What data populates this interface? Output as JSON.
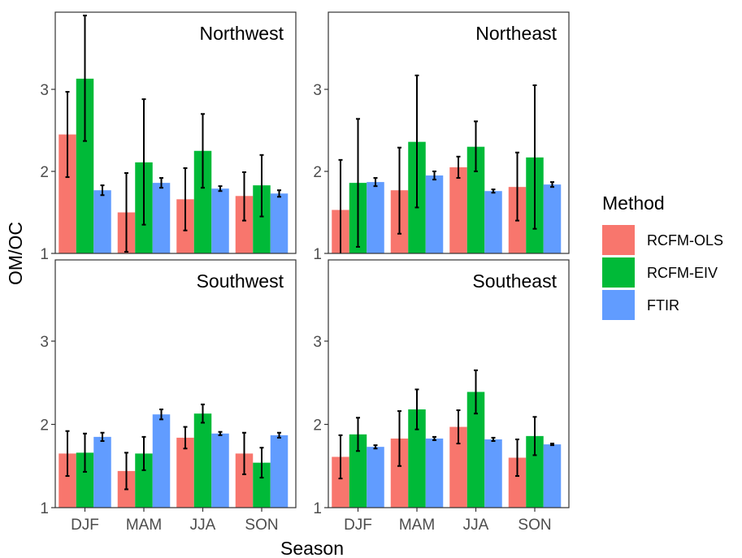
{
  "colors": {
    "RCFM-OLS": "#F8766D",
    "RCFM-EIV": "#00BA38",
    "FTIR": "#619CFF",
    "error_bar": "#000000",
    "panel_border": "#333333"
  },
  "chart_data": {
    "type": "bar",
    "facets": [
      "Northwest",
      "Northeast",
      "Southwest",
      "Southeast"
    ],
    "categories": [
      "DJF",
      "MAM",
      "JJA",
      "SON"
    ],
    "series_names": [
      "RCFM-OLS",
      "RCFM-EIV",
      "FTIR"
    ],
    "xlabel": "Season",
    "ylabel": "OM/OC",
    "ylim": [
      1,
      4
    ],
    "yticks": [
      "1",
      "2",
      "3"
    ],
    "grid": false,
    "legend": {
      "title": "Method",
      "position": "right",
      "entries": [
        "RCFM-OLS",
        "RCFM-EIV",
        "FTIR"
      ]
    },
    "panels": [
      {
        "facet": "Northwest",
        "series": [
          {
            "name": "RCFM-OLS",
            "values": [
              2.45,
              1.5,
              1.66,
              1.7
            ],
            "lower": [
              1.93,
              1.02,
              1.28,
              1.4
            ],
            "upper": [
              2.97,
              1.98,
              2.04,
              1.99
            ]
          },
          {
            "name": "RCFM-EIV",
            "values": [
              3.13,
              2.11,
              2.25,
              1.83
            ],
            "lower": [
              2.37,
              1.35,
              1.8,
              1.45
            ],
            "upper": [
              3.9,
              2.88,
              2.7,
              2.2
            ]
          },
          {
            "name": "FTIR",
            "values": [
              1.77,
              1.86,
              1.79,
              1.73
            ],
            "lower": [
              1.71,
              1.8,
              1.76,
              1.69
            ],
            "upper": [
              1.83,
              1.92,
              1.82,
              1.77
            ]
          }
        ]
      },
      {
        "facet": "Northeast",
        "series": [
          {
            "name": "RCFM-OLS",
            "values": [
              1.53,
              1.77,
              2.05,
              1.81
            ],
            "lower": [
              0.92,
              1.24,
              1.92,
              1.4
            ],
            "upper": [
              2.14,
              2.29,
              2.18,
              2.23
            ]
          },
          {
            "name": "RCFM-EIV",
            "values": [
              1.86,
              2.36,
              2.3,
              2.17
            ],
            "lower": [
              1.08,
              1.56,
              2.0,
              1.3
            ],
            "upper": [
              2.64,
              3.17,
              2.61,
              3.05
            ]
          },
          {
            "name": "FTIR",
            "values": [
              1.87,
              1.95,
              1.76,
              1.84
            ],
            "lower": [
              1.82,
              1.9,
              1.74,
              1.81
            ],
            "upper": [
              1.92,
              2.0,
              1.78,
              1.87
            ]
          }
        ]
      },
      {
        "facet": "Southwest",
        "series": [
          {
            "name": "RCFM-OLS",
            "values": [
              1.65,
              1.44,
              1.84,
              1.65
            ],
            "lower": [
              1.38,
              1.22,
              1.71,
              1.4
            ],
            "upper": [
              1.92,
              1.66,
              1.97,
              1.9
            ]
          },
          {
            "name": "RCFM-EIV",
            "values": [
              1.66,
              1.65,
              2.13,
              1.54
            ],
            "lower": [
              1.43,
              1.45,
              2.02,
              1.36
            ],
            "upper": [
              1.89,
              1.85,
              2.24,
              1.72
            ]
          },
          {
            "name": "FTIR",
            "values": [
              1.85,
              2.12,
              1.89,
              1.87
            ],
            "lower": [
              1.8,
              2.06,
              1.87,
              1.84
            ],
            "upper": [
              1.9,
              2.18,
              1.91,
              1.9
            ]
          }
        ]
      },
      {
        "facet": "Southeast",
        "series": [
          {
            "name": "RCFM-OLS",
            "values": [
              1.61,
              1.83,
              1.97,
              1.6
            ],
            "lower": [
              1.35,
              1.5,
              1.77,
              1.38
            ],
            "upper": [
              1.87,
              2.16,
              2.17,
              1.82
            ]
          },
          {
            "name": "RCFM-EIV",
            "values": [
              1.88,
              2.18,
              2.39,
              1.86
            ],
            "lower": [
              1.68,
              1.94,
              2.13,
              1.63
            ],
            "upper": [
              2.08,
              2.42,
              2.65,
              2.09
            ]
          },
          {
            "name": "FTIR",
            "values": [
              1.73,
              1.83,
              1.82,
              1.76
            ],
            "lower": [
              1.71,
              1.81,
              1.8,
              1.75
            ],
            "upper": [
              1.75,
              1.85,
              1.84,
              1.77
            ]
          }
        ]
      }
    ]
  }
}
